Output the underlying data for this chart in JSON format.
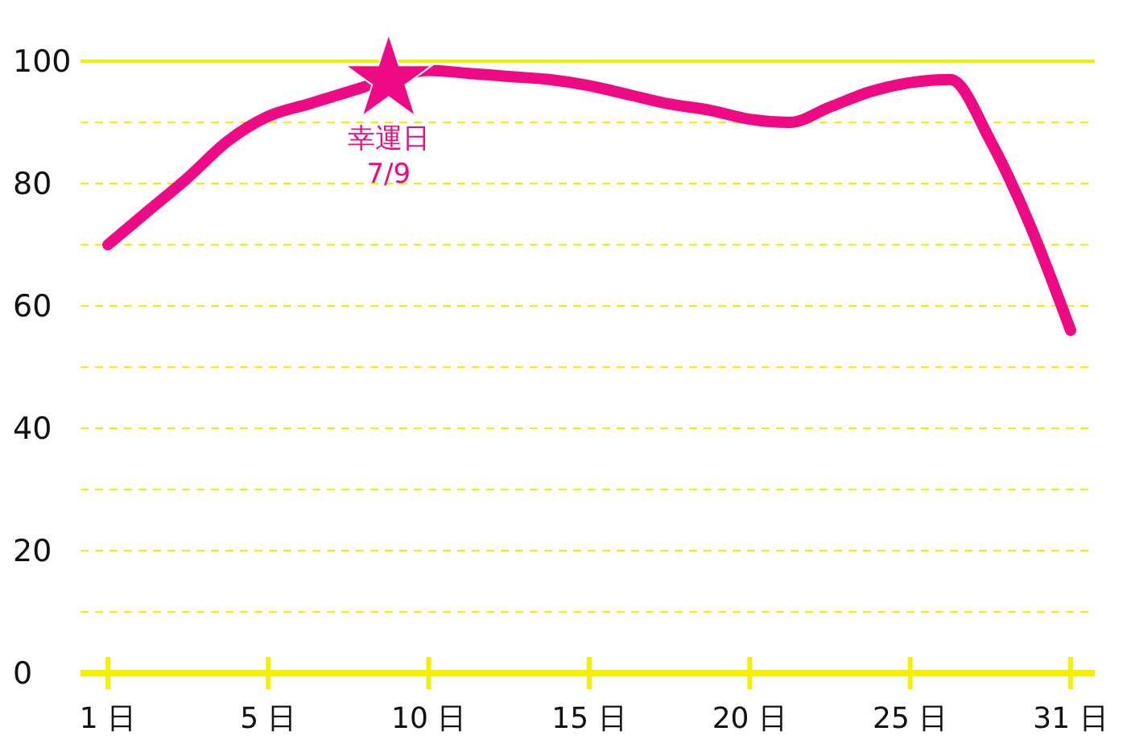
{
  "chart_data": {
    "type": "line",
    "categories": [
      "1 日",
      null,
      null,
      null,
      "5 日",
      null,
      null,
      null,
      "10 日",
      null,
      null,
      null,
      "15 日",
      null,
      null,
      null,
      "20 日",
      null,
      null,
      null,
      "25 日",
      null,
      null,
      null,
      "31 日"
    ],
    "ylim": [
      0,
      100
    ],
    "yticks": [
      0,
      {
        "value": 10,
        "label": null
      },
      20,
      {
        "value": 30,
        "label": null
      },
      40,
      {
        "value": 50,
        "label": null
      },
      60,
      {
        "value": 70,
        "label": null
      },
      80,
      {
        "value": 90,
        "label": null
      },
      100
    ],
    "grid": "y",
    "series": [
      {
        "color": "#ee0a84",
        "values": [
          70,
          75.5,
          81,
          87,
          91,
          93,
          95,
          97,
          98.5,
          98,
          97.5,
          97,
          96,
          94.5,
          93,
          92,
          90.5,
          90,
          92.5,
          95,
          96.5,
          97,
          87,
          73,
          56
        ]
      },
      {
        "type": "scatter",
        "color": "#ee0a84",
        "marker": "star",
        "values": [
          null,
          null,
          null,
          null,
          null,
          null,
          null,
          97,
          null,
          null,
          null,
          null,
          null,
          null,
          null,
          null,
          null,
          null,
          null,
          null,
          null,
          null,
          null,
          null,
          null
        ]
      }
    ],
    "annotations": [
      "幸運日\n7/9"
    ]
  }
}
